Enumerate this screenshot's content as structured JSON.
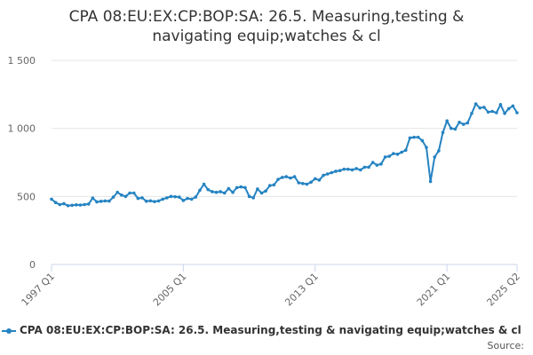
{
  "colors": {
    "series": "#2583c2",
    "grid": "#e6e6e6",
    "axis": "#ccd6eb",
    "text": "#666666"
  },
  "chart_data": {
    "type": "line",
    "title": "CPA 08:EU:EX:CP:BOP:SA: 26.5. Measuring,testing & navigating equip;watches & cl",
    "title_lines": [
      "CPA 08:EU:EX:CP:BOP:SA: 26.5. Measuring,testing &",
      "navigating equip;watches & cl"
    ],
    "xlabel": "",
    "ylabel": "",
    "ylim": [
      0,
      1500
    ],
    "yticks": [
      0,
      500,
      1000,
      1500
    ],
    "ytick_labels": [
      "0",
      "500",
      "1 000",
      "1 500"
    ],
    "xtick_labels": [
      "1997 Q1",
      "2005 Q1",
      "2013 Q1",
      "2021 Q1",
      "2025 Q2"
    ],
    "grid": true,
    "legend_position": "bottom",
    "series": [
      {
        "name": "CPA 08:EU:EX:CP:BOP:SA: 26.5. Measuring,testing & navigating equip;watches & cl",
        "x": [
          "1997 Q1",
          "1997 Q2",
          "1997 Q3",
          "1997 Q4",
          "1998 Q1",
          "1998 Q2",
          "1998 Q3",
          "1998 Q4",
          "1999 Q1",
          "1999 Q2",
          "1999 Q3",
          "1999 Q4",
          "2000 Q1",
          "2000 Q2",
          "2000 Q3",
          "2000 Q4",
          "2001 Q1",
          "2001 Q2",
          "2001 Q3",
          "2001 Q4",
          "2002 Q1",
          "2002 Q2",
          "2002 Q3",
          "2002 Q4",
          "2003 Q1",
          "2003 Q2",
          "2003 Q3",
          "2003 Q4",
          "2004 Q1",
          "2004 Q2",
          "2004 Q3",
          "2004 Q4",
          "2005 Q1",
          "2005 Q2",
          "2005 Q3",
          "2005 Q4",
          "2006 Q1",
          "2006 Q2",
          "2006 Q3",
          "2006 Q4",
          "2007 Q1",
          "2007 Q2",
          "2007 Q3",
          "2007 Q4",
          "2008 Q1",
          "2008 Q2",
          "2008 Q3",
          "2008 Q4",
          "2009 Q1",
          "2009 Q2",
          "2009 Q3",
          "2009 Q4",
          "2010 Q1",
          "2010 Q2",
          "2010 Q3",
          "2010 Q4",
          "2011 Q1",
          "2011 Q2",
          "2011 Q3",
          "2011 Q4",
          "2012 Q1",
          "2012 Q2",
          "2012 Q3",
          "2012 Q4",
          "2013 Q1",
          "2013 Q2",
          "2013 Q3",
          "2013 Q4",
          "2014 Q1",
          "2014 Q2",
          "2014 Q3",
          "2014 Q4",
          "2015 Q1",
          "2015 Q2",
          "2015 Q3",
          "2015 Q4",
          "2016 Q1",
          "2016 Q2",
          "2016 Q3",
          "2016 Q4",
          "2017 Q1",
          "2017 Q2",
          "2017 Q3",
          "2017 Q4",
          "2018 Q1",
          "2018 Q2",
          "2018 Q3",
          "2018 Q4",
          "2019 Q1",
          "2019 Q2",
          "2019 Q3",
          "2019 Q4",
          "2020 Q1",
          "2020 Q2",
          "2020 Q3",
          "2020 Q4",
          "2021 Q1",
          "2021 Q2",
          "2021 Q3",
          "2021 Q4",
          "2022 Q1",
          "2022 Q2",
          "2022 Q3",
          "2022 Q4",
          "2023 Q1",
          "2023 Q2",
          "2023 Q3",
          "2023 Q4",
          "2024 Q1",
          "2024 Q2",
          "2024 Q3",
          "2024 Q4",
          "2025 Q1",
          "2025 Q2"
        ],
        "values": [
          480,
          455,
          440,
          447,
          432,
          435,
          438,
          437,
          440,
          444,
          488,
          460,
          464,
          467,
          466,
          495,
          530,
          510,
          500,
          525,
          525,
          485,
          490,
          465,
          468,
          462,
          467,
          480,
          490,
          500,
          498,
          495,
          470,
          485,
          480,
          495,
          545,
          590,
          550,
          535,
          530,
          535,
          525,
          558,
          530,
          565,
          570,
          565,
          500,
          490,
          555,
          525,
          540,
          580,
          585,
          625,
          640,
          645,
          635,
          645,
          600,
          595,
          590,
          605,
          630,
          620,
          655,
          665,
          675,
          685,
          690,
          700,
          700,
          695,
          705,
          695,
          715,
          715,
          750,
          730,
          738,
          790,
          795,
          815,
          810,
          825,
          840,
          930,
          935,
          935,
          910,
          860,
          610,
          790,
          835,
          970,
          1055,
          1000,
          995,
          1045,
          1030,
          1040,
          1110,
          1180,
          1150,
          1155,
          1120,
          1125,
          1115,
          1175,
          1110,
          1145,
          1165,
          1115
        ]
      }
    ]
  },
  "legend": {
    "label": "CPA 08:EU:EX:CP:BOP:SA: 26.5. Measuring,testing & navigating equip;watches & cl"
  },
  "source": {
    "label": "Source:"
  }
}
